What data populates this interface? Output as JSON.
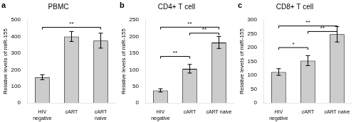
{
  "chart_data": [
    {
      "type": "bar",
      "panel_label": "a",
      "title": "PBMC",
      "ylabel": "Relative levels of miR-155",
      "categories": [
        "HIV\nnegative",
        "cART",
        "cART\nnaive"
      ],
      "values": [
        155,
        400,
        375
      ],
      "errors": [
        15,
        30,
        45
      ],
      "color": "#cccccc",
      "ylim": [
        0,
        500
      ],
      "yticks": [
        0,
        100,
        200,
        300,
        400,
        500
      ],
      "grid": false,
      "annotations": [
        {
          "from": "HIV\nnegative",
          "to": "cART\nnaive",
          "y": 455,
          "label": "**"
        }
      ]
    },
    {
      "type": "bar",
      "panel_label": "b",
      "title": "CD4+ T cell",
      "ylabel": "Relative levels of miR-155",
      "categories": [
        "HIV\nnegative",
        "cART",
        "cART naive"
      ],
      "values": [
        38,
        103,
        182
      ],
      "errors": [
        5,
        13,
        18
      ],
      "color": "#cccccc",
      "ylim": [
        0,
        250
      ],
      "yticks": [
        0,
        50,
        100,
        150,
        200,
        250
      ],
      "grid": false,
      "annotations": [
        {
          "from": "HIV\nnegative",
          "to": "cART",
          "y": 140,
          "label": "**"
        },
        {
          "from": "HIV\nnegative",
          "to": "cART naive",
          "y": 228,
          "label": "**"
        },
        {
          "from": "cART",
          "to": "cART naive",
          "y": 210,
          "label": "**"
        }
      ]
    },
    {
      "type": "bar",
      "panel_label": "c",
      "title": "CD8+ T cell",
      "ylabel": "Relative levels of miR-155",
      "categories": [
        "HIV\nnegative",
        "cART",
        "cART naive"
      ],
      "values": [
        112,
        153,
        248
      ],
      "errors": [
        12,
        18,
        28
      ],
      "color": "#cccccc",
      "ylim": [
        0,
        300
      ],
      "yticks": [
        0,
        50,
        100,
        150,
        200,
        250,
        300
      ],
      "grid": false,
      "annotations": [
        {
          "from": "HIV\nnegative",
          "to": "cART",
          "y": 200,
          "label": "*"
        },
        {
          "from": "HIV\nnegative",
          "to": "cART naive",
          "y": 278,
          "label": "**"
        },
        {
          "from": "cART",
          "to": "cART naive",
          "y": 258,
          "label": "**"
        }
      ]
    }
  ]
}
